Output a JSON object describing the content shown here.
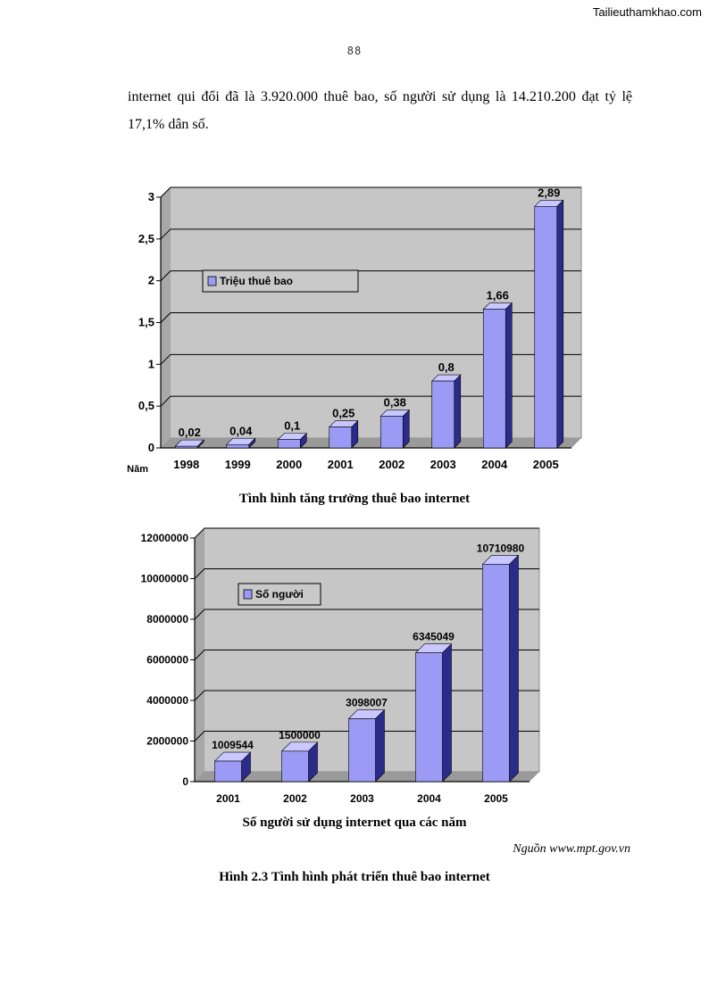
{
  "header": {
    "watermark": "Tailieuthamkhao.com",
    "page_number": "88"
  },
  "intro_text": "internet qui đổi đã là 3.920.000 thuê bao, số người sử dụng là 14.210.200 đạt tỷ lệ 17,1% dân số.",
  "colors": {
    "plot_bg": "#c6c6c6",
    "bar_front": "#9b9bf5",
    "bar_side": "#2b2b8c",
    "bar_top": "#c8c8ff",
    "gridline": "#000000"
  },
  "chart_data": [
    {
      "type": "bar",
      "title": "Tình hình tăng trưởng thuê bao internet",
      "xlabel": "Năm",
      "ylabel": "",
      "legend": "Triệu thuê bao",
      "legend_position": "upper-left",
      "categories": [
        "1998",
        "1999",
        "2000",
        "2001",
        "2002",
        "2003",
        "2004",
        "2005"
      ],
      "values": [
        0.02,
        0.04,
        0.1,
        0.25,
        0.38,
        0.8,
        1.66,
        2.89
      ],
      "value_labels": [
        "0,02",
        "0,04",
        "0,1",
        "0,25",
        "0,38",
        "0,8",
        "1,66",
        "2,89"
      ],
      "ylim": [
        0,
        3
      ],
      "yticks": [
        0,
        0.5,
        1,
        1.5,
        2,
        2.5,
        3
      ],
      "ytick_labels": [
        "0",
        "0,5",
        "1",
        "1,5",
        "2",
        "2,5",
        "3"
      ],
      "grid": true
    },
    {
      "type": "bar",
      "title": "Số người sử dụng internet qua các năm",
      "xlabel": "",
      "ylabel": "",
      "legend": "Số người",
      "legend_position": "upper-left",
      "categories": [
        "2001",
        "2002",
        "2003",
        "2004",
        "2005"
      ],
      "values": [
        1009544,
        1500000,
        3098007,
        6345049,
        10710980
      ],
      "value_labels": [
        "1009544",
        "1500000",
        "3098007",
        "6345049",
        "10710980"
      ],
      "ylim": [
        0,
        12000000
      ],
      "yticks": [
        0,
        2000000,
        4000000,
        6000000,
        8000000,
        10000000,
        12000000
      ],
      "ytick_labels": [
        "0",
        "2000000",
        "4000000",
        "6000000",
        "8000000",
        "10000000",
        "12000000"
      ],
      "grid": true
    }
  ],
  "source_note": "Nguồn www.mpt.gov.vn",
  "figure_caption": "Hình 2.3 Tình hình phát triển thuê bao internet"
}
